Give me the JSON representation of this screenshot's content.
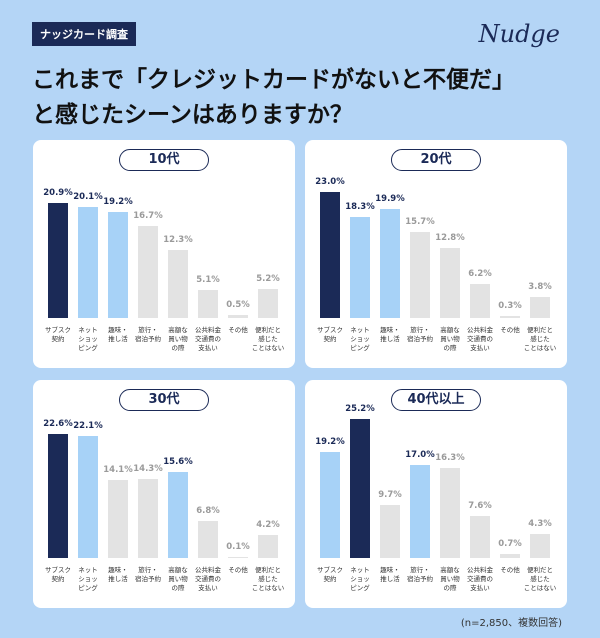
{
  "header": {
    "tag": "ナッジカード調査",
    "logo": "Nudge",
    "title_lines": [
      "これまで「クレジットカードがないと不便だ」",
      "と感じたシーンはありますか？"
    ]
  },
  "note": "(n=2,850、複数回答)",
  "chart_data": [
    {
      "type": "bar",
      "title": "10代",
      "categories": [
        "サブスク\n契約",
        "ネット\nショッ\nピング",
        "趣味・\n推し活",
        "旅行・\n宿泊予約",
        "高額な\n買い物\nの際",
        "公共料金\n交通費の\n支払い",
        "その他",
        "便利だと\n感じた\nことはない"
      ],
      "values": [
        20.9,
        20.1,
        19.2,
        16.7,
        12.3,
        5.1,
        0.5,
        5.2
      ],
      "value_labels": [
        "20.9%",
        "20.1%",
        "19.2%",
        "16.7%",
        "12.3%",
        "5.1%",
        "0.5%",
        "5.2%"
      ],
      "colors": [
        "#1b2a57",
        "#a7d2f7",
        "#a7d2f7",
        "#e3e3e3",
        "#e3e3e3",
        "#e3e3e3",
        "#e3e3e3",
        "#e3e3e3"
      ],
      "value_label_colors": [
        "#1b2a57",
        "#1b2a57",
        "#1b2a57",
        "#9a9a9a",
        "#9a9a9a",
        "#9a9a9a",
        "#9a9a9a",
        "#9a9a9a"
      ]
    },
    {
      "type": "bar",
      "title": "20代",
      "categories": [
        "サブスク\n契約",
        "ネット\nショッ\nピング",
        "趣味・\n推し活",
        "旅行・\n宿泊予約",
        "高額な\n買い物\nの際",
        "公共料金\n交通費の\n支払い",
        "その他",
        "便利だと\n感じた\nことはない"
      ],
      "values": [
        23.0,
        18.3,
        19.9,
        15.7,
        12.8,
        6.2,
        0.3,
        3.8
      ],
      "value_labels": [
        "23.0%",
        "18.3%",
        "19.9%",
        "15.7%",
        "12.8%",
        "6.2%",
        "0.3%",
        "3.8%"
      ],
      "colors": [
        "#1b2a57",
        "#a7d2f7",
        "#a7d2f7",
        "#e3e3e3",
        "#e3e3e3",
        "#e3e3e3",
        "#e3e3e3",
        "#e3e3e3"
      ],
      "value_label_colors": [
        "#1b2a57",
        "#1b2a57",
        "#1b2a57",
        "#9a9a9a",
        "#9a9a9a",
        "#9a9a9a",
        "#9a9a9a",
        "#9a9a9a"
      ]
    },
    {
      "type": "bar",
      "title": "30代",
      "categories": [
        "サブスク\n契約",
        "ネット\nショッ\nピング",
        "趣味・\n推し活",
        "旅行・\n宿泊予約",
        "高額な\n買い物\nの際",
        "公共料金\n交通費の\n支払い",
        "その他",
        "便利だと\n感じた\nことはない"
      ],
      "values": [
        22.6,
        22.1,
        14.1,
        14.3,
        15.6,
        6.8,
        0.1,
        4.2
      ],
      "value_labels": [
        "22.6%",
        "22.1%",
        "14.1%",
        "14.3%",
        "15.6%",
        "6.8%",
        "0.1%",
        "4.2%"
      ],
      "colors": [
        "#1b2a57",
        "#a7d2f7",
        "#e3e3e3",
        "#e3e3e3",
        "#a7d2f7",
        "#e3e3e3",
        "#e3e3e3",
        "#e3e3e3"
      ],
      "value_label_colors": [
        "#1b2a57",
        "#1b2a57",
        "#9a9a9a",
        "#9a9a9a",
        "#1b2a57",
        "#9a9a9a",
        "#9a9a9a",
        "#9a9a9a"
      ]
    },
    {
      "type": "bar",
      "title": "40代以上",
      "categories": [
        "サブスク\n契約",
        "ネット\nショッ\nピング",
        "趣味・\n推し活",
        "旅行・\n宿泊予約",
        "高額な\n買い物\nの際",
        "公共料金\n交通費の\n支払い",
        "その他",
        "便利だと\n感じた\nことはない"
      ],
      "values": [
        19.2,
        25.2,
        9.7,
        17.0,
        16.3,
        7.6,
        0.7,
        4.3
      ],
      "value_labels": [
        "19.2%",
        "25.2%",
        "9.7%",
        "17.0%",
        "16.3%",
        "7.6%",
        "0.7%",
        "4.3%"
      ],
      "colors": [
        "#a7d2f7",
        "#1b2a57",
        "#e3e3e3",
        "#a7d2f7",
        "#e3e3e3",
        "#e3e3e3",
        "#e3e3e3",
        "#e3e3e3"
      ],
      "value_label_colors": [
        "#1b2a57",
        "#1b2a57",
        "#9a9a9a",
        "#1b2a57",
        "#9a9a9a",
        "#9a9a9a",
        "#9a9a9a",
        "#9a9a9a"
      ]
    }
  ]
}
